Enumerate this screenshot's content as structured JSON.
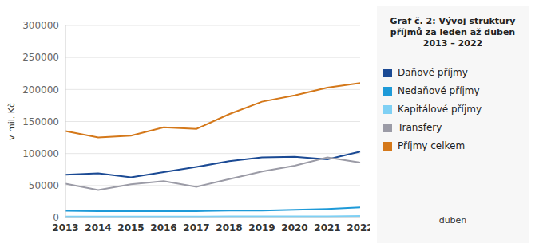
{
  "chart_data": {
    "type": "line",
    "title": "Graf č. 2: Vývoj struktury příjmů za leden až duben 2013 – 2022",
    "y_label": "v mil. Kč",
    "annotation": "duben",
    "categories": [
      "2013",
      "2014",
      "2015",
      "2016",
      "2017",
      "2018",
      "2019",
      "2020",
      "2021",
      "2022"
    ],
    "series": [
      {
        "name": "Daňové příjmy",
        "color": "#1b4a94",
        "values": [
          67000,
          69000,
          63000,
          71000,
          79000,
          88000,
          94000,
          95000,
          91000,
          103000
        ]
      },
      {
        "name": "Nedaňové příjmy",
        "color": "#1e9ad8",
        "values": [
          10500,
          10000,
          10000,
          10000,
          10000,
          11000,
          11000,
          12000,
          13500,
          16000
        ]
      },
      {
        "name": "Kapitálové příjmy",
        "color": "#7fd0f4",
        "values": [
          1500,
          1500,
          1500,
          1500,
          1500,
          2000,
          2000,
          2000,
          2000,
          2500
        ]
      },
      {
        "name": "Transfery",
        "color": "#9b9ba6",
        "values": [
          53000,
          43000,
          52000,
          57000,
          48000,
          60000,
          72000,
          81000,
          94000,
          86000
        ]
      },
      {
        "name": "Příjmy celkem",
        "color": "#d4781a",
        "values": [
          135000,
          125000,
          128000,
          141000,
          138500,
          161500,
          181000,
          190700,
          202800,
          210000
        ]
      }
    ],
    "ylim": [
      0,
      300000
    ],
    "yticks": [
      0,
      50000,
      100000,
      150000,
      200000,
      250000,
      300000
    ],
    "grid": true,
    "legend": "right"
  }
}
